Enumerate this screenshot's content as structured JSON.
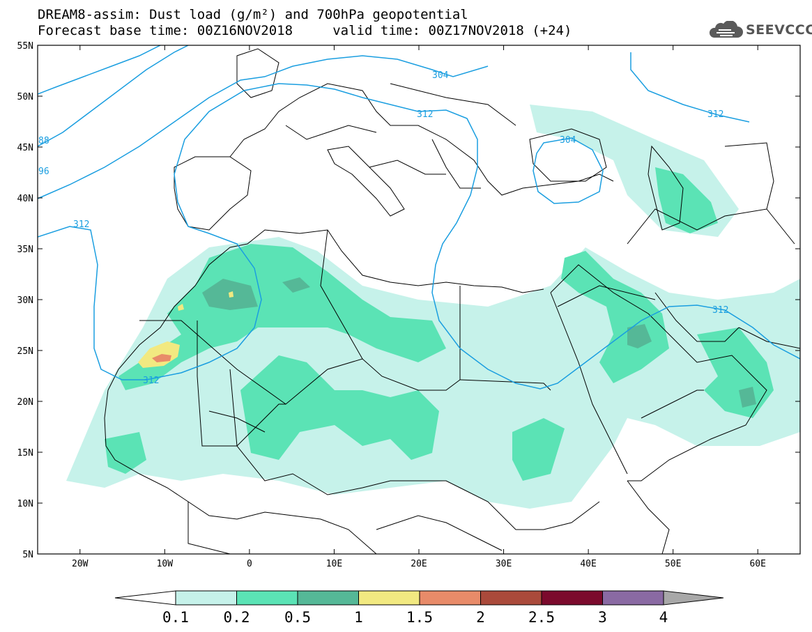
{
  "header": {
    "line1": "DREAM8-assim: Dust load (g/m²) and 700hPa geopotential",
    "line2": "Forecast base time: 00Z16NOV2018     valid time: 00Z17NOV2018 (+24)"
  },
  "logo": {
    "icon": "cloud-logo-icon",
    "text": "SEEVCCC"
  },
  "map": {
    "lat_labels": [
      "55N",
      "50N",
      "45N",
      "40N",
      "35N",
      "30N",
      "25N",
      "20N",
      "15N",
      "10N",
      "5N"
    ],
    "lon_labels": [
      "20W",
      "10W",
      "0",
      "10E",
      "20E",
      "30E",
      "40E",
      "50E",
      "60E"
    ],
    "lat_range": [
      5,
      55
    ],
    "lon_range": [
      -25,
      65
    ],
    "contour_labels": [
      "304",
      "312",
      "312",
      "304",
      "312",
      "312",
      "312",
      "88",
      "96"
    ],
    "contour_color": "#1a9ee0"
  },
  "colorbar": {
    "ticks": [
      "0.1",
      "0.2",
      "0.5",
      "1",
      "1.5",
      "2",
      "2.5",
      "3",
      "4"
    ],
    "colors": [
      "#c6f2ea",
      "#5be3b5",
      "#55b897",
      "#f2e981",
      "#e88b69",
      "#aa4a3b",
      "#7b0a2c",
      "#8a6aa3"
    ],
    "low_color": "#ffffff",
    "high_color": "#a8a8a8"
  }
}
